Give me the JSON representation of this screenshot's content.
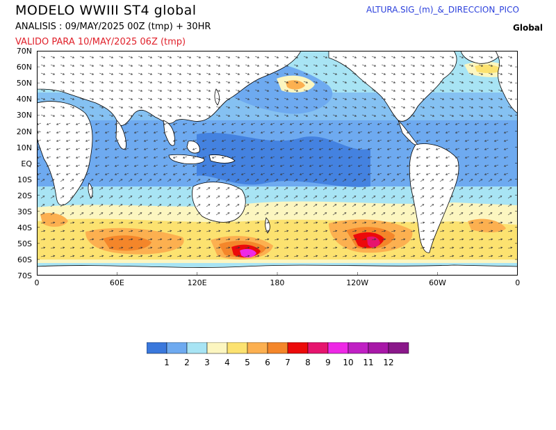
{
  "header": {
    "title": "MODELO  WWIII  ST4  global",
    "analysis": "ANALISIS : 09/MAY/2025 00Z   (tmp) + 30HR",
    "valid": "VALIDO PARA  10/MAY/2025 06Z  (tmp)",
    "product": "ALTURA.SIG_(m)_&_DIRECCION_PICO",
    "region": "Global"
  },
  "axes": {
    "lat_labels": [
      "70N",
      "60N",
      "50N",
      "40N",
      "30N",
      "20N",
      "10N",
      "EQ",
      "10S",
      "20S",
      "30S",
      "40S",
      "50S",
      "60S",
      "70S"
    ],
    "lon_labels": [
      "0",
      "60E",
      "120E",
      "180",
      "120W",
      "60W",
      "0"
    ]
  },
  "legend": {
    "levels": [
      "1",
      "2",
      "3",
      "4",
      "5",
      "6",
      "7",
      "8",
      "9",
      "10",
      "11",
      "12"
    ],
    "colors": [
      "#3a78dc",
      "#6eaaf0",
      "#a8e4f4",
      "#fcf6c0",
      "#fce270",
      "#fcb050",
      "#f4862a",
      "#ec0a0a",
      "#e6146e",
      "#ee28e6",
      "#c020c4",
      "#a818a8",
      "#8a188a"
    ]
  },
  "colors": {
    "land": "#ffffff",
    "coast": "#000000",
    "arrow": "#3a3a3a"
  }
}
